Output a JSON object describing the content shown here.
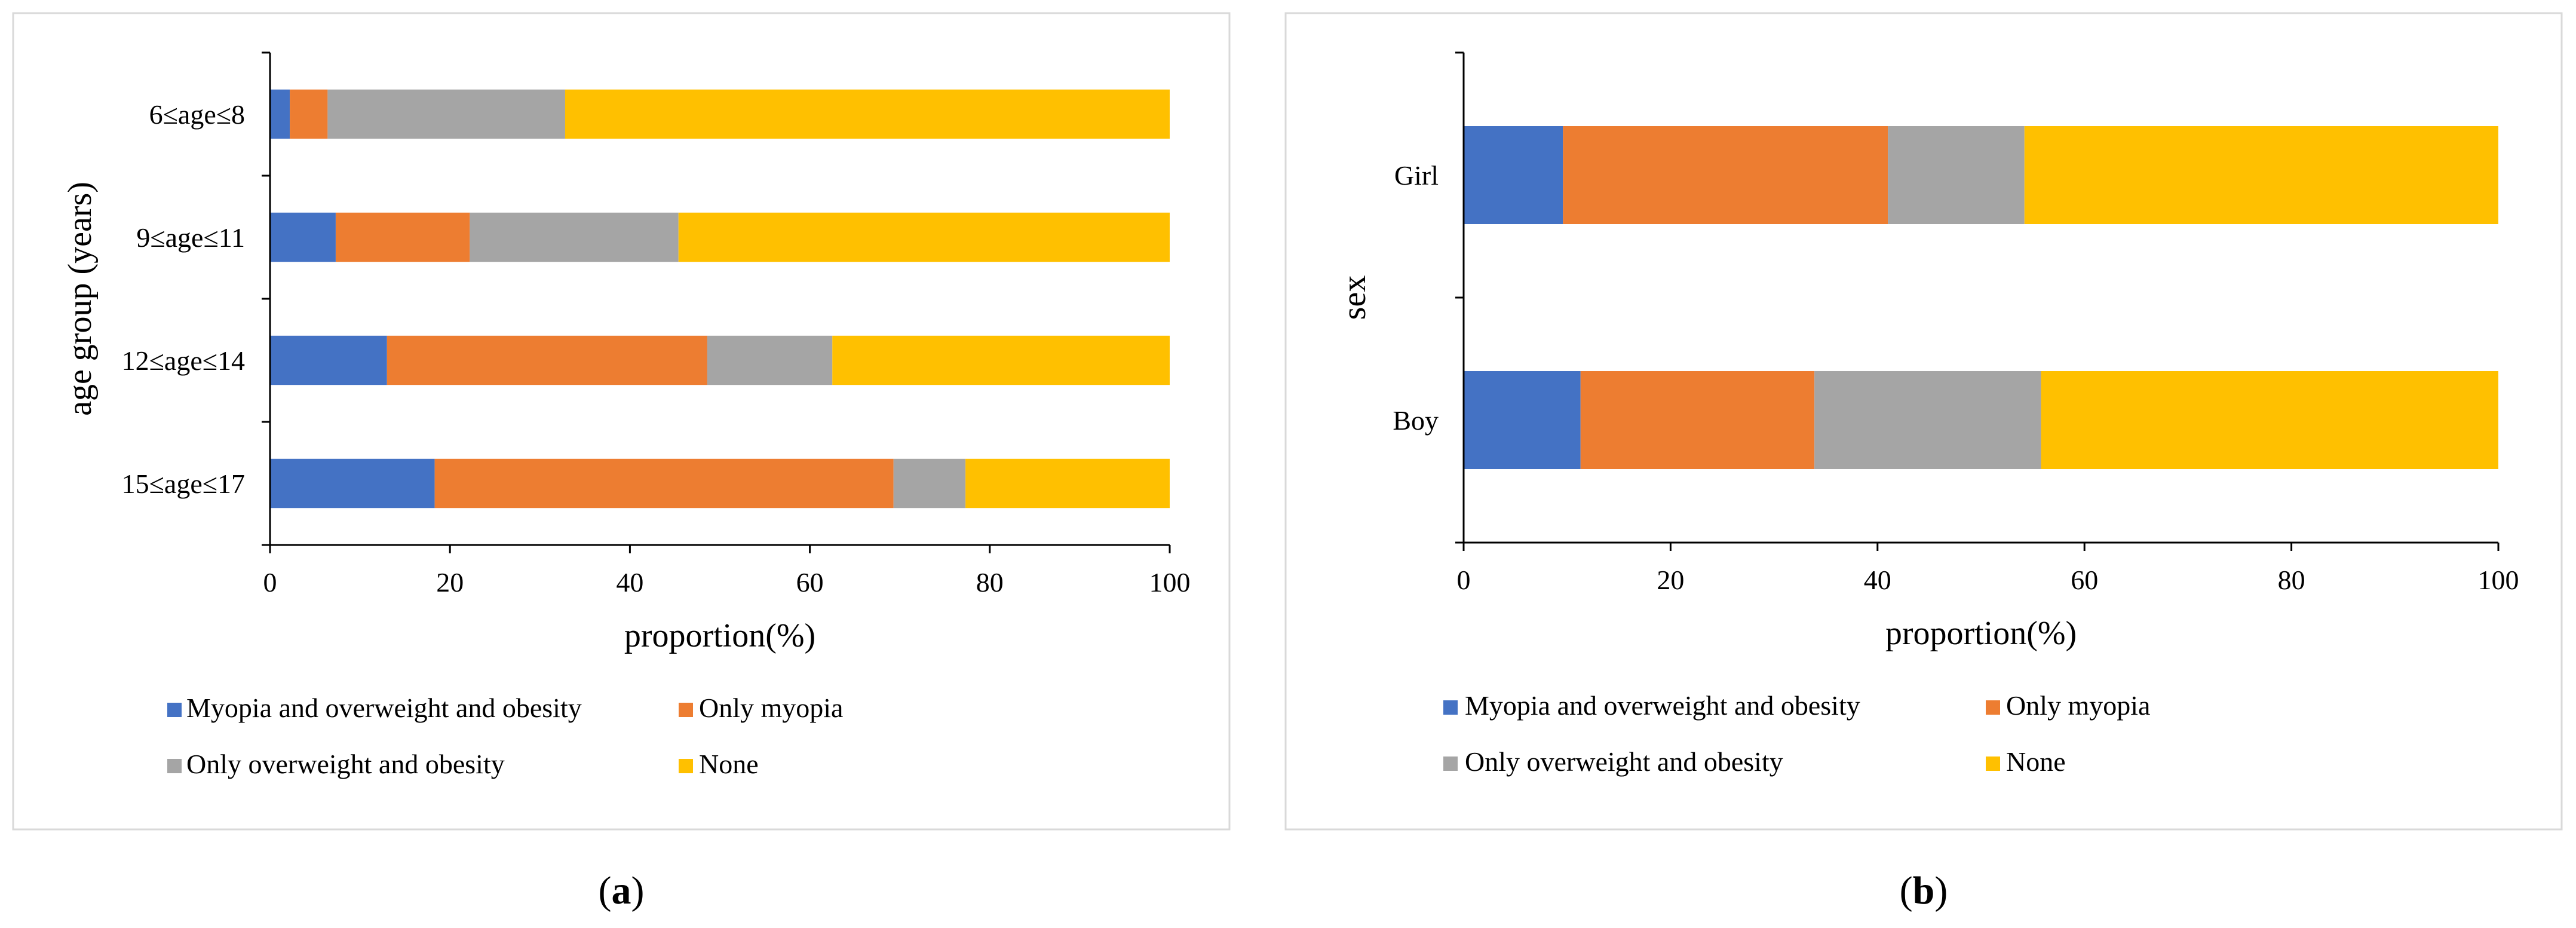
{
  "colors": {
    "series": [
      "#4472C4",
      "#ED7D31",
      "#A5A5A5",
      "#FFC000"
    ],
    "axis": "#000000",
    "panel_border": "#D9D9D9"
  },
  "chart_data": [
    {
      "type": "bar",
      "orientation": "horizontal",
      "stacked": true,
      "panel_label": "a",
      "title": "",
      "xlabel": "proportion(%)",
      "ylabel": "age group (years)",
      "xlim": [
        0,
        100
      ],
      "xticks": [
        0,
        20,
        40,
        60,
        80,
        100
      ],
      "grid": false,
      "legend_position": "bottom",
      "categories": [
        "6≤age≤8",
        "9≤age≤11",
        "12≤age≤14",
        "15≤age≤17"
      ],
      "series": [
        {
          "name": "Myopia and overweight and obesity",
          "values": [
            2.2,
            7.3,
            13.0,
            18.3
          ]
        },
        {
          "name": "Only myopia",
          "values": [
            4.2,
            14.9,
            35.6,
            51.0
          ]
        },
        {
          "name": "Only overweight and obesity",
          "values": [
            26.4,
            23.2,
            13.9,
            8.0
          ]
        },
        {
          "name": "None",
          "values": [
            67.2,
            54.6,
            37.5,
            22.7
          ]
        }
      ]
    },
    {
      "type": "bar",
      "orientation": "horizontal",
      "stacked": true,
      "panel_label": "b",
      "title": "",
      "xlabel": "proportion(%)",
      "ylabel": "sex",
      "xlim": [
        0,
        100
      ],
      "xticks": [
        0,
        20,
        40,
        60,
        80,
        100
      ],
      "grid": false,
      "legend_position": "bottom",
      "categories": [
        "Girl",
        "Boy"
      ],
      "series": [
        {
          "name": "Myopia and overweight and obesity",
          "values": [
            9.6,
            11.3
          ]
        },
        {
          "name": "Only myopia",
          "values": [
            31.4,
            22.6
          ]
        },
        {
          "name": "Only overweight and obesity",
          "values": [
            13.2,
            21.9
          ]
        },
        {
          "name": "None",
          "values": [
            45.8,
            44.2
          ]
        }
      ]
    }
  ]
}
